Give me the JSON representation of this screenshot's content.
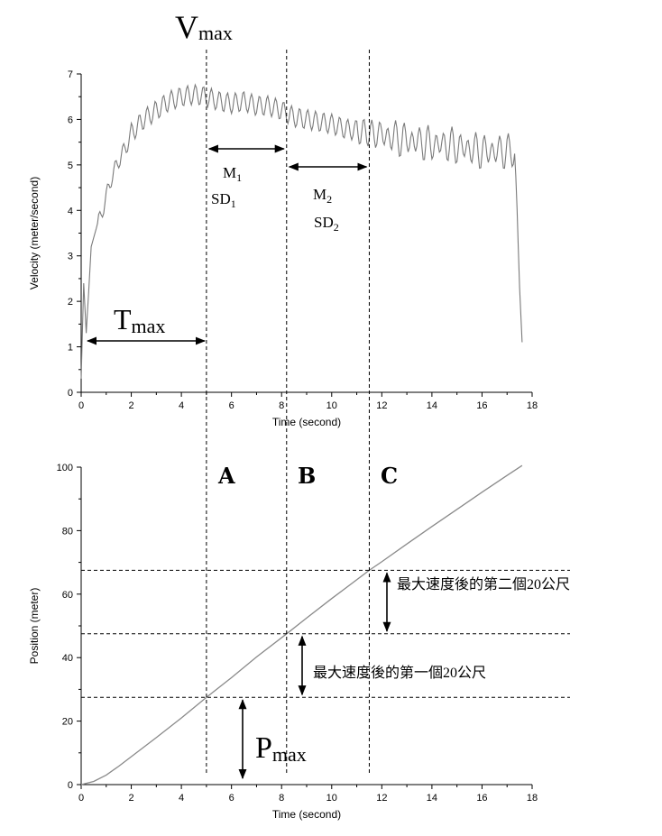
{
  "chart_data": [
    {
      "type": "line",
      "xlabel": "Time (second)",
      "ylabel": "Velocity (meter/second)",
      "xlim": [
        0,
        18
      ],
      "ylim": [
        0,
        7
      ],
      "xticks": [
        "0",
        "2",
        "4",
        "6",
        "8",
        "10",
        "12",
        "14",
        "16",
        "18"
      ],
      "yticks": [
        "0",
        "1",
        "2",
        "3",
        "4",
        "5",
        "6",
        "7"
      ],
      "series": [
        {
          "x": [
            0.0,
            0.1,
            0.2,
            0.3,
            0.4,
            0.6,
            0.8,
            1.0,
            1.2,
            1.5,
            1.8,
            2.0,
            2.5,
            3.0,
            3.5,
            4.0,
            4.5,
            5.0,
            5.5,
            6.0,
            6.5,
            7.0,
            7.5,
            8.0,
            8.5,
            9.0,
            9.5,
            10.0,
            10.5,
            11.0,
            11.5,
            12.0,
            12.5,
            13.0,
            13.5,
            14.0,
            14.5,
            15.0,
            15.5,
            16.0,
            16.5,
            17.0,
            17.3,
            17.6
          ],
          "y": [
            0.3,
            2.4,
            1.3,
            2.2,
            3.2,
            3.6,
            3.9,
            4.3,
            4.7,
            5.1,
            5.4,
            5.7,
            6.0,
            6.2,
            6.4,
            6.5,
            6.55,
            6.5,
            6.4,
            6.35,
            6.4,
            6.3,
            6.3,
            6.2,
            6.05,
            6.0,
            5.95,
            5.9,
            5.8,
            5.75,
            5.7,
            5.65,
            5.6,
            5.55,
            5.5,
            5.45,
            5.45,
            5.4,
            5.35,
            5.3,
            5.3,
            5.3,
            5.25,
            1.1
          ]
        }
      ],
      "annotations": {
        "vmax": {
          "main": "V",
          "sub": "max"
        },
        "tmax": {
          "main": "T",
          "sub": "max"
        },
        "m1": {
          "main": "M",
          "sub": "1"
        },
        "sd1": {
          "main": "SD",
          "sub": "1"
        },
        "m2": {
          "main": "M",
          "sub": "2"
        },
        "sd2": {
          "main": "SD",
          "sub": "2"
        }
      }
    },
    {
      "type": "line",
      "xlabel": "Time (second)",
      "ylabel": "Position (meter)",
      "xlim": [
        0,
        18
      ],
      "ylim": [
        0,
        100
      ],
      "xticks": [
        "0",
        "2",
        "4",
        "6",
        "8",
        "10",
        "12",
        "14",
        "16",
        "18"
      ],
      "yticks": [
        "0",
        "20",
        "40",
        "60",
        "80",
        "100"
      ],
      "series": [
        {
          "x": [
            0,
            0.5,
            1.0,
            1.5,
            2.0,
            3.0,
            4.0,
            5.0,
            6.0,
            7.0,
            8.2,
            9.0,
            10.0,
            11.5,
            12.0,
            13.0,
            14.0,
            15.0,
            16.0,
            17.0,
            17.6
          ],
          "y": [
            0,
            1.0,
            3.0,
            5.8,
            8.8,
            14.8,
            21.0,
            27.5,
            33.7,
            40.2,
            47.5,
            52.5,
            58.6,
            67.5,
            70.2,
            75.8,
            81.3,
            86.7,
            92.1,
            97.4,
            100.5
          ]
        }
      ],
      "section_labels": [
        "A",
        "B",
        "C"
      ],
      "pmax": {
        "main": "P",
        "sub": "max"
      },
      "notes": [
        "最大速度後的第二個20公尺",
        "最大速度後的第一個20公尺"
      ]
    }
  ],
  "reference_times": [
    5.0,
    8.2,
    11.5
  ],
  "reference_positions": [
    27.5,
    47.5,
    67.5
  ]
}
